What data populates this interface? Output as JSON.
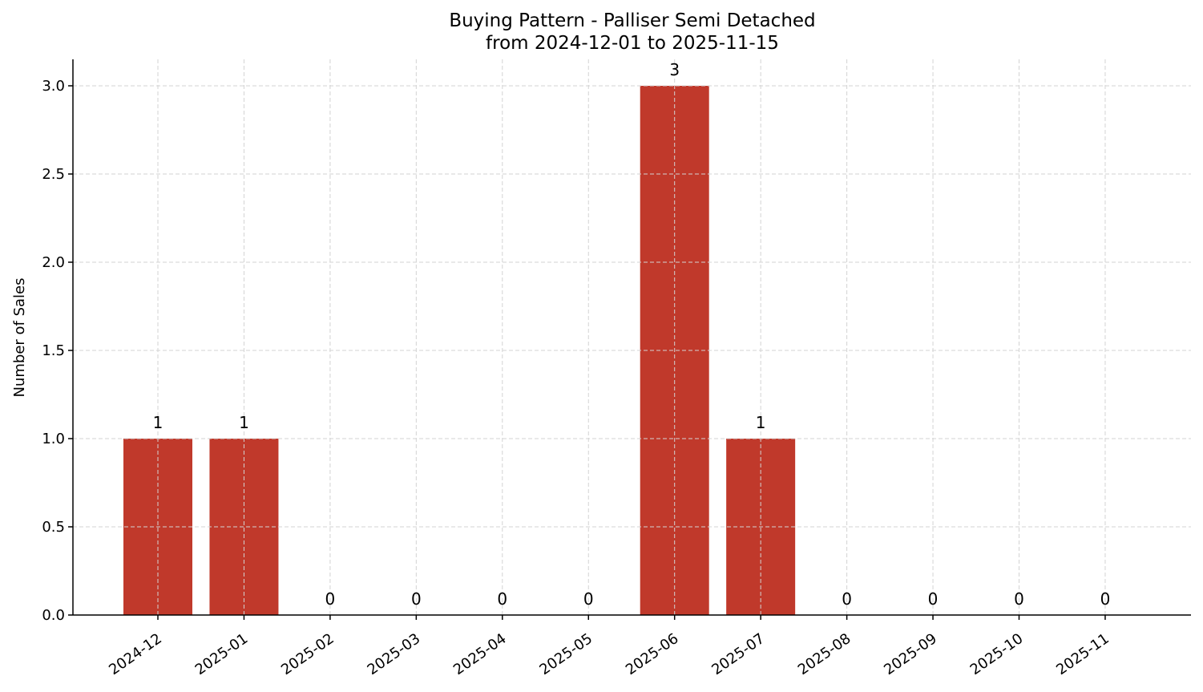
{
  "chart_data": {
    "type": "bar",
    "title": "Buying Pattern - Palliser Semi Detached",
    "subtitle": "from 2024-12-01 to 2025-11-15",
    "xlabel": "",
    "ylabel": "Number of Sales",
    "categories": [
      "2024-12",
      "2025-01",
      "2025-02",
      "2025-03",
      "2025-04",
      "2025-05",
      "2025-06",
      "2025-07",
      "2025-08",
      "2025-09",
      "2025-10",
      "2025-11"
    ],
    "values": [
      1,
      1,
      0,
      0,
      0,
      0,
      3,
      1,
      0,
      0,
      0,
      0
    ],
    "data_labels": [
      "1",
      "1",
      "0",
      "0",
      "0",
      "0",
      "3",
      "1",
      "0",
      "0",
      "0",
      "0"
    ],
    "ylim": [
      0,
      3.15
    ],
    "yticks": [
      "0.0",
      "0.5",
      "1.0",
      "1.5",
      "2.0",
      "2.5",
      "3.0"
    ],
    "grid": true,
    "bar_color": "#c0392b"
  }
}
